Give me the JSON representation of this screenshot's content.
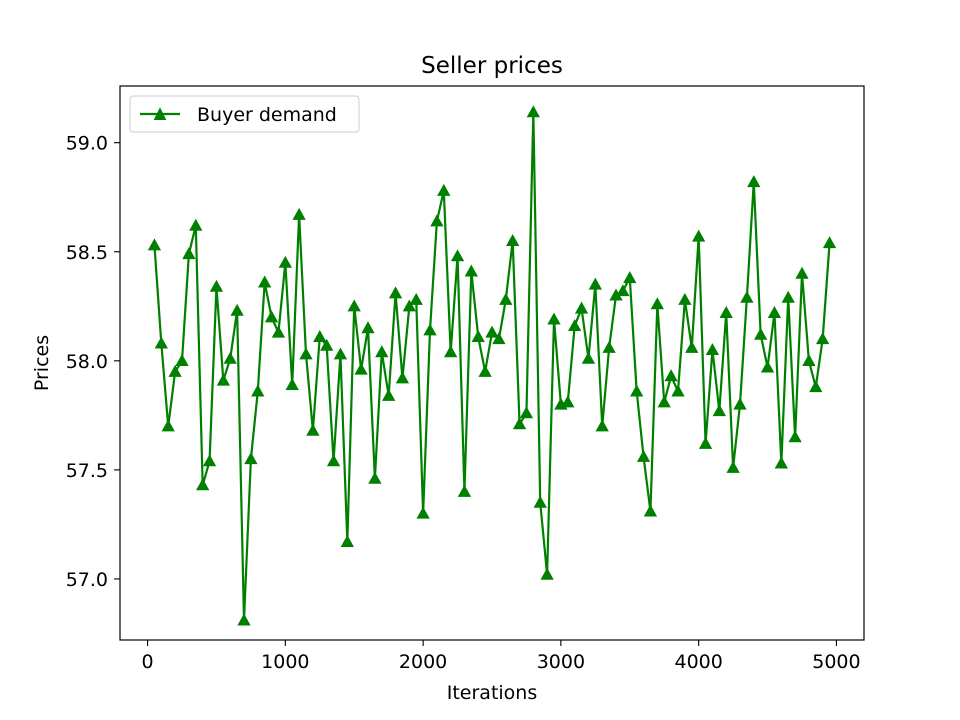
{
  "chart_data": {
    "type": "line",
    "title": "Seller prices",
    "xlabel": "Iterations",
    "ylabel": "Prices",
    "xlim": [
      -200,
      5200
    ],
    "ylim": [
      56.72,
      59.26
    ],
    "x_ticks": [
      0,
      1000,
      2000,
      3000,
      4000,
      5000
    ],
    "x_tick_labels": [
      "0",
      "1000",
      "2000",
      "3000",
      "4000",
      "5000"
    ],
    "y_ticks": [
      57.0,
      57.5,
      58.0,
      58.5,
      59.0
    ],
    "y_tick_labels": [
      "57.0",
      "57.5",
      "58.0",
      "58.5",
      "59.0"
    ],
    "grid": false,
    "legend": {
      "placement": "upper-left",
      "show": true
    },
    "series": [
      {
        "name": "Buyer demand",
        "color": "#008000",
        "marker": "triangle-up",
        "x": [
          50,
          100,
          150,
          200,
          250,
          300,
          350,
          400,
          450,
          500,
          550,
          600,
          650,
          700,
          750,
          800,
          850,
          900,
          950,
          1000,
          1050,
          1100,
          1150,
          1200,
          1250,
          1300,
          1350,
          1400,
          1450,
          1500,
          1550,
          1600,
          1650,
          1700,
          1750,
          1800,
          1850,
          1900,
          1950,
          2000,
          2050,
          2100,
          2150,
          2200,
          2250,
          2300,
          2350,
          2400,
          2450,
          2500,
          2550,
          2600,
          2650,
          2700,
          2750,
          2800,
          2850,
          2900,
          2950,
          3000,
          3050,
          3100,
          3150,
          3200,
          3250,
          3300,
          3350,
          3400,
          3450,
          3500,
          3550,
          3600,
          3650,
          3700,
          3750,
          3800,
          3850,
          3900,
          3950,
          4000,
          4050,
          4100,
          4150,
          4200,
          4250,
          4300,
          4350,
          4400,
          4450,
          4500,
          4550,
          4600,
          4650,
          4700,
          4750,
          4800,
          4850,
          4900,
          4950
        ],
        "values": [
          58.53,
          58.08,
          57.7,
          57.95,
          58.0,
          58.49,
          58.62,
          57.43,
          57.54,
          58.34,
          57.91,
          58.01,
          58.23,
          56.81,
          57.55,
          57.86,
          58.36,
          58.2,
          58.13,
          58.45,
          57.89,
          58.67,
          58.03,
          57.68,
          58.11,
          58.07,
          57.54,
          58.03,
          57.17,
          58.25,
          57.96,
          58.15,
          57.46,
          58.04,
          57.84,
          58.31,
          57.92,
          58.25,
          58.28,
          57.3,
          58.14,
          58.64,
          58.78,
          58.04,
          58.48,
          57.4,
          58.41,
          58.11,
          57.95,
          58.13,
          58.1,
          58.28,
          58.55,
          57.71,
          57.76,
          59.14,
          57.35,
          57.02,
          58.19,
          57.8,
          57.81,
          58.16,
          58.24,
          58.01,
          58.35,
          57.7,
          58.06,
          58.3,
          58.32,
          58.38,
          57.86,
          57.56,
          57.31,
          58.26,
          57.81,
          57.93,
          57.86,
          58.28,
          58.06,
          58.57,
          57.62,
          58.05,
          57.77,
          58.22,
          57.51,
          57.8,
          58.29,
          58.82,
          58.12,
          57.97,
          58.22,
          57.53,
          58.29,
          57.65,
          58.4,
          58.0,
          57.88,
          58.1,
          58.54
        ]
      }
    ]
  }
}
